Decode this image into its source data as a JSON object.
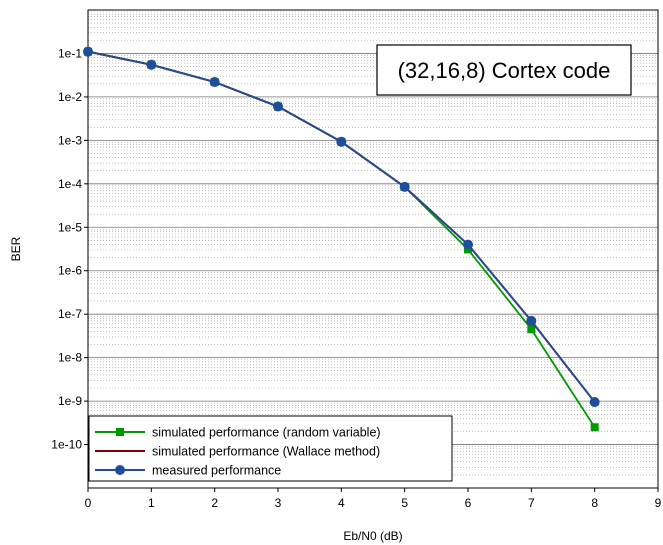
{
  "chart_data": {
    "type": "line",
    "title": "",
    "xlabel": "Eb/N0 (dB)",
    "ylabel": "BER",
    "xlim": [
      0,
      9
    ],
    "ylim": [
      1e-11,
      1
    ],
    "yscale": "log",
    "x_ticks": [
      "0",
      "1",
      "2",
      "3",
      "4",
      "5",
      "6",
      "7",
      "8",
      "9"
    ],
    "y_ticks": [
      "1e-1",
      "1e-2",
      "1e-3",
      "1e-4",
      "1e-5",
      "1e-6",
      "1e-7",
      "1e-8",
      "1e-9",
      "1e-10"
    ],
    "grid": true,
    "annotation": "(32,16,8) Cortex code",
    "legend_position": "bottom-left",
    "series": [
      {
        "name": "simulated performance (random variable)",
        "color": "#009900",
        "marker": "square",
        "x": [
          0,
          1,
          2,
          3,
          4,
          5,
          6,
          7,
          8
        ],
        "y": [
          0.11,
          0.055,
          0.022,
          0.006,
          0.00093,
          8.5e-05,
          3.1e-06,
          4.5e-08,
          2.5e-10
        ]
      },
      {
        "name": "simulated performance (Wallace method)",
        "color": "#800000",
        "marker": "none",
        "x": [
          0,
          1,
          2,
          3,
          4,
          5,
          6,
          7,
          8
        ],
        "y": [
          0.11,
          0.055,
          0.022,
          0.006,
          0.00093,
          8.5e-05,
          4e-06,
          7e-08,
          9.5e-10
        ]
      },
      {
        "name": "measured performance",
        "color": "#1f4e9a",
        "marker": "circle",
        "x": [
          0,
          1,
          2,
          3,
          4,
          5,
          6,
          7,
          8
        ],
        "y": [
          0.11,
          0.055,
          0.022,
          0.006,
          0.00093,
          8.5e-05,
          4e-06,
          7e-08,
          9.5e-10
        ]
      }
    ]
  }
}
